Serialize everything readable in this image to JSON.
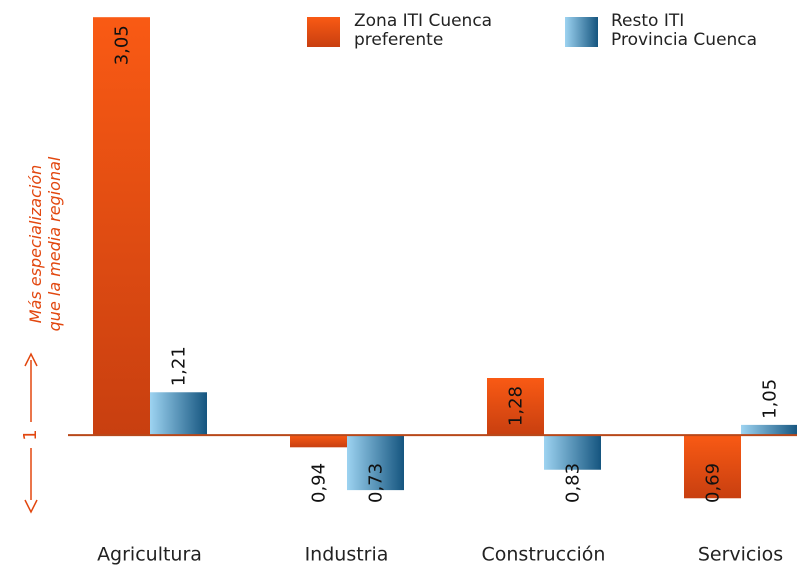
{
  "chart_data": {
    "type": "bar",
    "categories": [
      "Agricultura",
      "Industria",
      "Construcción",
      "Servicios"
    ],
    "series": [
      {
        "name": "Zona ITI Cuenca preferente",
        "color": "#e2470f",
        "values": [
          3.05,
          0.94,
          1.28,
          0.69
        ],
        "value_labels": [
          "3,05",
          "0,94",
          "1,28",
          "0,69"
        ]
      },
      {
        "name": "Resto ITI Provincia Cuenca",
        "color": "#3a8fc4",
        "values": [
          1.21,
          0.73,
          0.83,
          1.05
        ],
        "value_labels": [
          "1,21",
          "0,73",
          "0,83",
          "1,05"
        ]
      }
    ],
    "ylim": [
      0.5,
      3.1
    ],
    "yticks": [
      1
    ],
    "annotation": "Más especialización que la media regional"
  }
}
